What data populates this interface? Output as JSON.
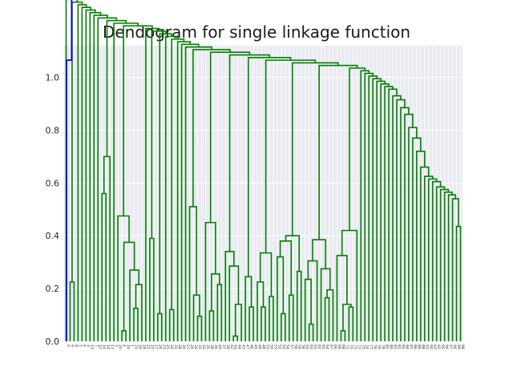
{
  "chart_data": {
    "type": "dendrogram",
    "title": "Dendogram for single linkage function",
    "xlabel": "",
    "ylabel": "",
    "ylim": [
      0,
      1.12
    ],
    "y_ticks": [
      "0.0",
      "0.2",
      "0.4",
      "0.6",
      "0.8",
      "1.0"
    ],
    "grid": true,
    "colors": {
      "background": "#eaeaf2",
      "grid": "#ffffff",
      "cluster": "#008000",
      "root": "#0000ff"
    },
    "leaf_labels": [
      "0",
      "9",
      "8",
      "5",
      "6",
      "2",
      "11",
      "7",
      "12",
      "10",
      "14",
      "13",
      "3",
      "20",
      "4",
      "19",
      "1",
      "21",
      "16",
      "18",
      "22",
      "15",
      "17",
      "26",
      "23",
      "25",
      "24",
      "31",
      "28",
      "30",
      "27",
      "29",
      "34",
      "33",
      "32",
      "35",
      "38",
      "36",
      "40",
      "37",
      "39",
      "42",
      "41",
      "44",
      "43",
      "47",
      "46",
      "45",
      "49",
      "48",
      "51",
      "50",
      "53",
      "52",
      "55",
      "54",
      "57",
      "56",
      "59",
      "58",
      "61",
      "60",
      "63",
      "62",
      "65",
      "64",
      "67",
      "66",
      "69",
      "68",
      "71",
      "70",
      "73",
      "72",
      "75",
      "74",
      "77",
      "76",
      "79",
      "78",
      "81",
      "80",
      "83",
      "82",
      "85",
      "84",
      "87",
      "86",
      "89",
      "88",
      "91",
      "90",
      "93",
      "92",
      "95",
      "94",
      "97",
      "96",
      "99",
      "98"
    ],
    "merges": [
      {
        "left": 1,
        "right": 2,
        "height": 0.225
      },
      {
        "left": 9,
        "right": 10,
        "height": 0.56
      },
      {
        "left": 10,
        "right": 11,
        "height": 0.7
      },
      {
        "left": 9,
        "right": 10,
        "height": 0.74
      },
      {
        "left": 14,
        "right": 15,
        "height": 0.04
      },
      {
        "left": 17,
        "right": 18,
        "height": 0.125
      },
      {
        "left": 16,
        "right": 17,
        "height": 0.27
      },
      {
        "left": 15,
        "right": 16,
        "height": 0.375
      },
      {
        "left": 18,
        "right": 19,
        "height": 0.215
      },
      {
        "left": 13,
        "right": 14,
        "height": 0.475
      },
      {
        "left": 21,
        "right": 22,
        "height": 0.39
      },
      {
        "left": 23,
        "right": 24,
        "height": 0.105
      },
      {
        "left": 26,
        "right": 27,
        "height": 0.12
      },
      {
        "left": 33,
        "right": 34,
        "height": 0.095
      },
      {
        "left": 32,
        "right": 33,
        "height": 0.175
      },
      {
        "left": 31,
        "right": 32,
        "height": 0.51
      },
      {
        "left": 36,
        "right": 37,
        "height": 0.115
      },
      {
        "left": 38,
        "right": 39,
        "height": 0.215
      },
      {
        "left": 37,
        "right": 38,
        "height": 0.255
      },
      {
        "left": 36,
        "right": 37,
        "height": 0.385
      },
      {
        "left": 35,
        "right": 36,
        "height": 0.45
      },
      {
        "left": 42,
        "right": 43,
        "height": 0.02
      },
      {
        "left": 43,
        "right": 44,
        "height": 0.14
      },
      {
        "left": 42,
        "right": 43,
        "height": 0.225
      },
      {
        "left": 41,
        "right": 42,
        "height": 0.285
      },
      {
        "left": 40,
        "right": 41,
        "height": 0.34
      },
      {
        "left": 46,
        "right": 47,
        "height": 0.13
      },
      {
        "left": 45,
        "right": 46,
        "height": 0.245
      },
      {
        "left": 49,
        "right": 50,
        "height": 0.13
      },
      {
        "left": 48,
        "right": 49,
        "height": 0.225
      },
      {
        "left": 51,
        "right": 52,
        "height": 0.17
      },
      {
        "left": 50,
        "right": 51,
        "height": 0.335
      },
      {
        "left": 54,
        "right": 55,
        "height": 0.105
      },
      {
        "left": 53,
        "right": 54,
        "height": 0.32
      },
      {
        "left": 56,
        "right": 57,
        "height": 0.175
      },
      {
        "left": 55,
        "right": 56,
        "height": 0.38
      },
      {
        "left": 58,
        "right": 59,
        "height": 0.265
      },
      {
        "left": 57,
        "right": 58,
        "height": 0.4
      },
      {
        "left": 61,
        "right": 62,
        "height": 0.065
      },
      {
        "left": 60,
        "right": 61,
        "height": 0.235
      },
      {
        "left": 62,
        "right": 63,
        "height": 0.305
      },
      {
        "left": 61,
        "right": 62,
        "height": 0.355
      },
      {
        "left": 60,
        "right": 61,
        "height": 0.395
      },
      {
        "left": 65,
        "right": 66,
        "height": 0.165
      },
      {
        "left": 66,
        "right": 67,
        "height": 0.195
      },
      {
        "left": 65,
        "right": 66,
        "height": 0.235
      },
      {
        "left": 64,
        "right": 65,
        "height": 0.275
      },
      {
        "left": 63,
        "right": 64,
        "height": 0.385
      },
      {
        "left": 69,
        "right": 70,
        "height": 0.04
      },
      {
        "left": 70,
        "right": 71,
        "height": 0.14
      },
      {
        "left": 69,
        "right": 70,
        "height": 0.285
      },
      {
        "left": 68,
        "right": 69,
        "height": 0.325
      },
      {
        "left": 71,
        "right": 72,
        "height": 0.13
      },
      {
        "left": 72,
        "right": 73,
        "height": 0.42
      },
      {
        "left": 70,
        "right": 71,
        "height": 0.435
      }
    ]
  }
}
